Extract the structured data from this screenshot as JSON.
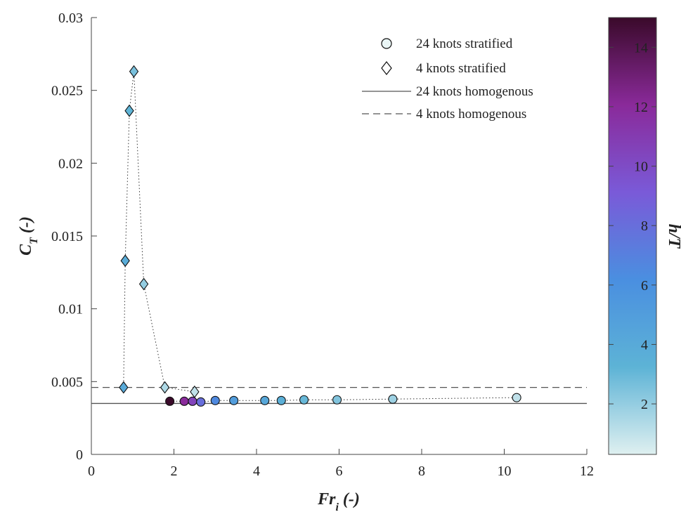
{
  "chart_data": {
    "type": "scatter",
    "title": "",
    "xlabel": {
      "main": "Fr",
      "sub": "i",
      "suffix": " (-)"
    },
    "ylabel": {
      "main": "C",
      "sub": "T",
      "suffix": " (-)"
    },
    "xlim": [
      0,
      12
    ],
    "ylim": [
      0,
      0.03
    ],
    "xticks": [
      0,
      2,
      4,
      6,
      8,
      10,
      12
    ],
    "xtick_labels": [
      "0",
      "2",
      "4",
      "6",
      "8",
      "10",
      "12"
    ],
    "yticks": [
      0,
      0.005,
      0.01,
      0.015,
      0.02,
      0.025,
      0.03
    ],
    "ytick_labels": [
      "0",
      "0.005",
      "0.01",
      "0.015",
      "0.02",
      "0.025",
      "0.03"
    ],
    "grid": false,
    "legend_position": "top-right",
    "series": [
      {
        "name": "24 knots stratified",
        "marker": "circle",
        "points": [
          {
            "x": 1.9,
            "y": 0.00365,
            "h": 15.0
          },
          {
            "x": 2.25,
            "y": 0.00365,
            "h": 12.0
          },
          {
            "x": 2.45,
            "y": 0.00365,
            "h": 10.5
          },
          {
            "x": 2.65,
            "y": 0.0036,
            "h": 8.0
          },
          {
            "x": 3.0,
            "y": 0.0037,
            "h": 6.5
          },
          {
            "x": 3.45,
            "y": 0.0037,
            "h": 5.0
          },
          {
            "x": 4.2,
            "y": 0.0037,
            "h": 4.2
          },
          {
            "x": 4.6,
            "y": 0.0037,
            "h": 3.6
          },
          {
            "x": 5.15,
            "y": 0.00375,
            "h": 3.0
          },
          {
            "x": 5.95,
            "y": 0.00375,
            "h": 2.4
          },
          {
            "x": 7.3,
            "y": 0.0038,
            "h": 1.8
          },
          {
            "x": 10.3,
            "y": 0.0039,
            "h": 1.0
          }
        ]
      },
      {
        "name": "4 knots stratified",
        "marker": "diamond",
        "points": [
          {
            "x": 0.78,
            "y": 0.0046,
            "h": 4.0
          },
          {
            "x": 0.82,
            "y": 0.0133,
            "h": 3.8
          },
          {
            "x": 0.92,
            "y": 0.0236,
            "h": 3.2
          },
          {
            "x": 1.03,
            "y": 0.0263,
            "h": 2.6
          },
          {
            "x": 1.27,
            "y": 0.0117,
            "h": 2.0
          },
          {
            "x": 1.78,
            "y": 0.0046,
            "h": 1.4
          },
          {
            "x": 2.5,
            "y": 0.0043,
            "h": 1.0
          }
        ]
      },
      {
        "name": "24 knots homogenous",
        "type": "hline",
        "style": "solid",
        "y": 0.0035
      },
      {
        "name": "4 knots homogenous",
        "type": "hline",
        "style": "dashed",
        "y": 0.0046
      }
    ],
    "colorbar": {
      "label": "h/T",
      "range": [
        0.3,
        15
      ],
      "ticks": [
        2,
        4,
        6,
        8,
        10,
        12,
        14
      ],
      "tick_labels": [
        "2",
        "4",
        "6",
        "8",
        "10",
        "12",
        "14"
      ],
      "colors": [
        "#dff0f0",
        "#5db3d6",
        "#4a8fe0",
        "#7a5ad8",
        "#8a2a9a",
        "#3a0a2a"
      ]
    }
  }
}
